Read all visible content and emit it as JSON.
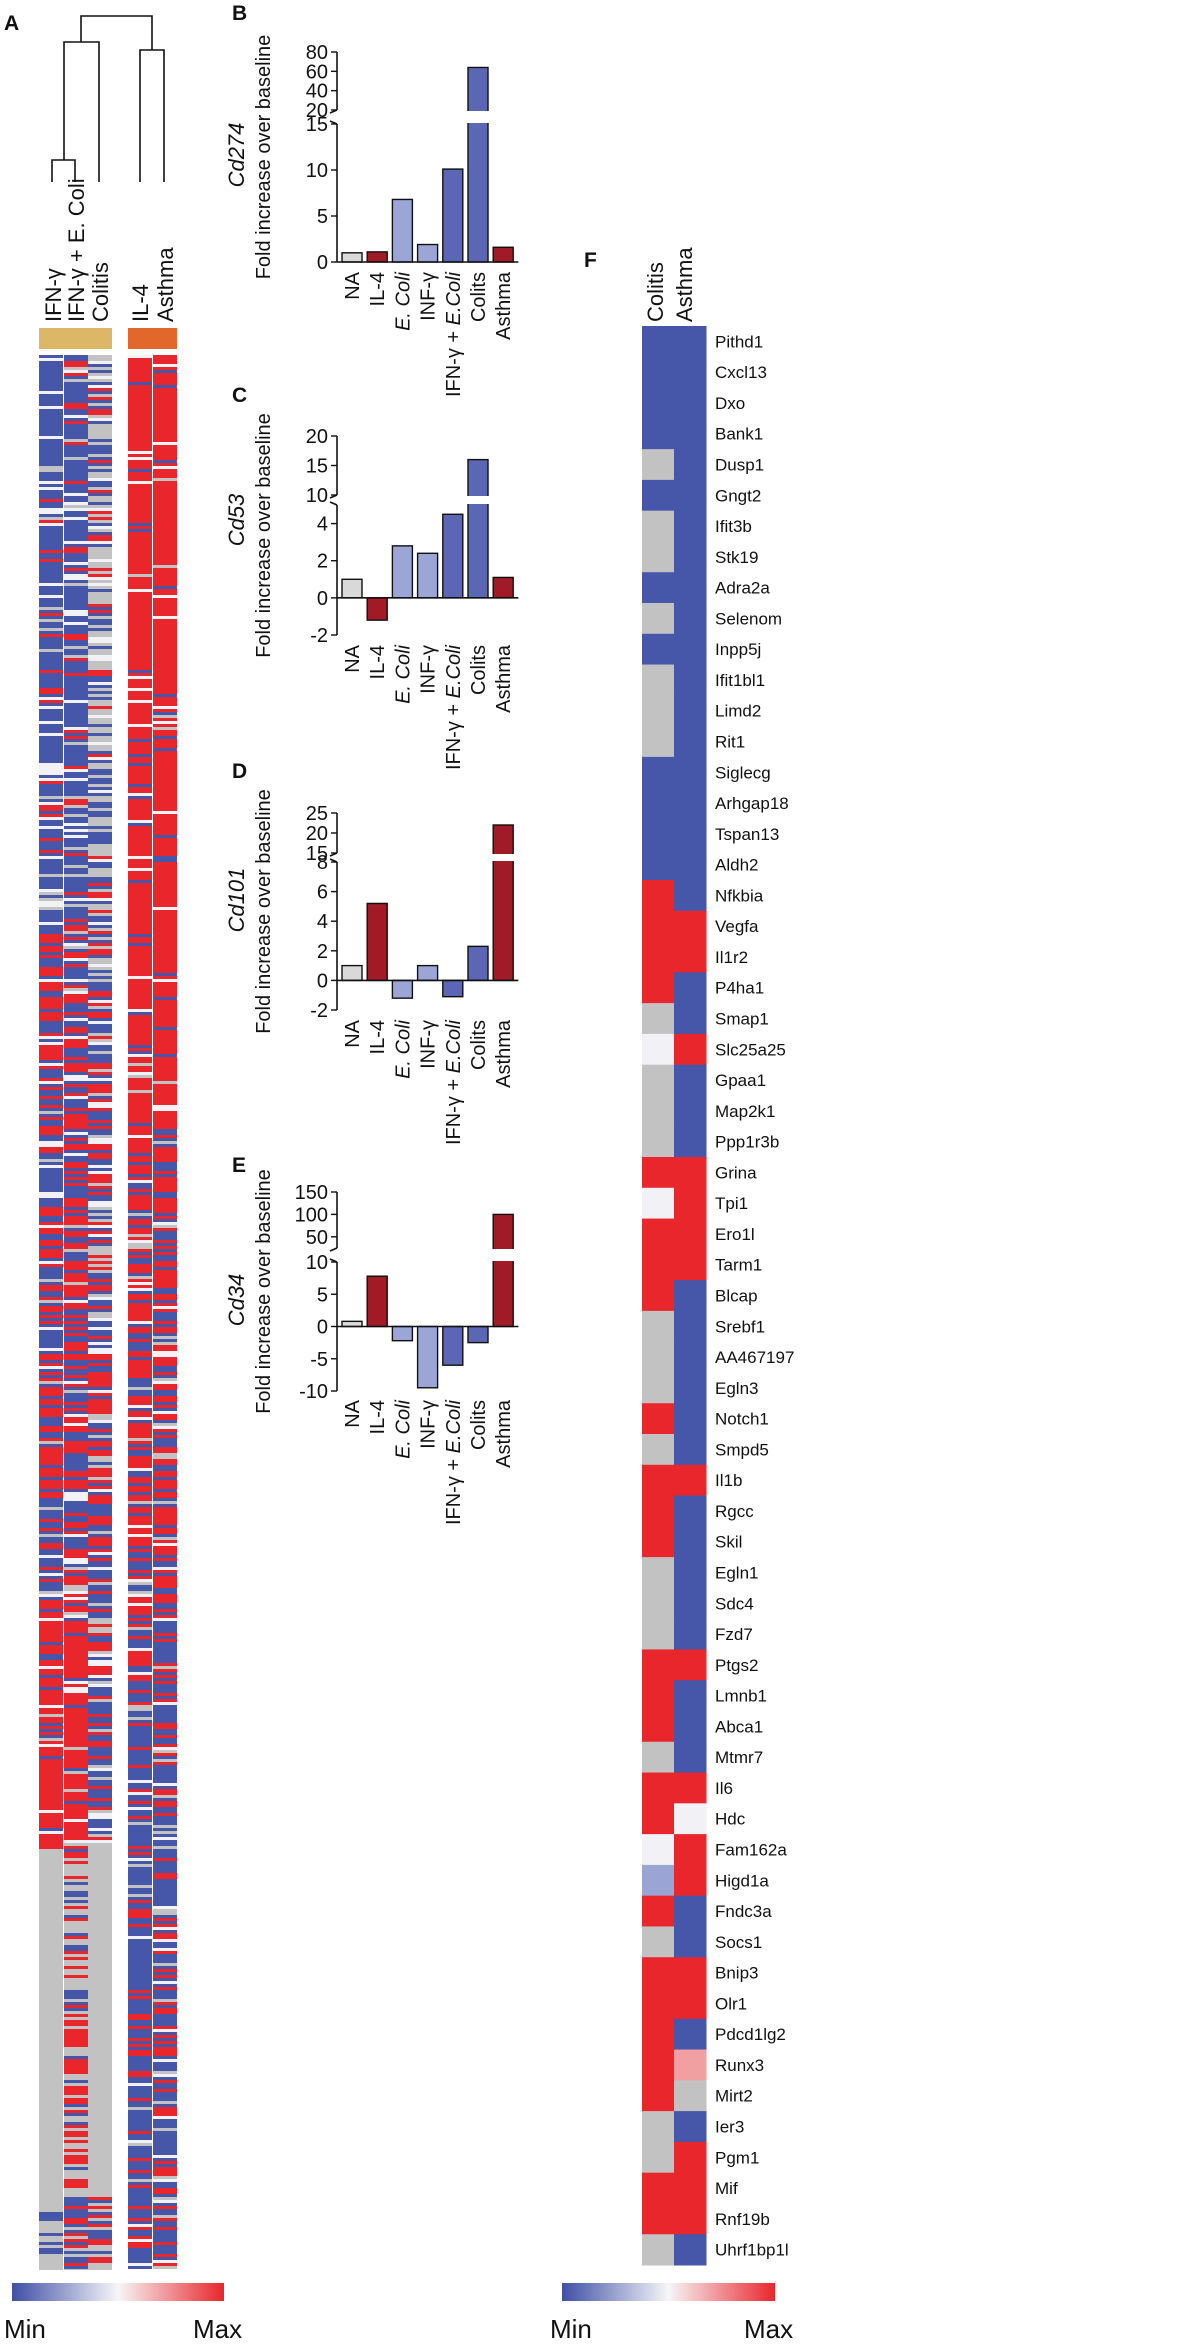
{
  "panels": {
    "a": "A",
    "b": "B",
    "c": "C",
    "d": "D",
    "e": "E",
    "f": "F"
  },
  "colors": {
    "blue": "#4656a8",
    "red": "#e8262c",
    "grey": "#c2c2c2",
    "white": "#f2f2f6",
    "light_blue": "#9ba5d3",
    "light_red": "#f0a0a0",
    "bar_na": "#d9d9d9",
    "bar_treg": "#9ba5d6",
    "bar_th1": "#5b66b4",
    "bar_th2": "#a01b25",
    "tan": "#dcb768",
    "orange": "#e2672a"
  },
  "heatmap_a": {
    "group1_labels": [
      "IFN-γ",
      "IFN-γ + E. Coli",
      "Colitis"
    ],
    "group2_labels": [
      "IL-4",
      "Asthma"
    ]
  },
  "colorbar": {
    "min": "Min",
    "max": "Max"
  },
  "chart_data": [
    {
      "panel": "B",
      "type": "bar",
      "gene": "Cd274",
      "ylabel": "Fold increase over baseline",
      "categories": [
        "NA",
        "IL-4",
        "E. Coli",
        "INF-γ",
        "IFN-γ + E.Coli",
        "Colits",
        "Asthma"
      ],
      "values": [
        1,
        1.1,
        6.8,
        1.9,
        10.1,
        64,
        1.6
      ],
      "lower_ticks": [
        "0",
        "5",
        "10",
        "15"
      ],
      "upper_ticks": [
        "20",
        "40",
        "60",
        "80"
      ],
      "lower_range": [
        0,
        15
      ],
      "upper_range": [
        20,
        80
      ]
    },
    {
      "panel": "C",
      "type": "bar",
      "gene": "Cd53",
      "ylabel": "Fold increase over baseline",
      "categories": [
        "NA",
        "IL-4",
        "E. Coli",
        "INF-γ",
        "IFN-γ + E.Coli",
        "Colits",
        "Asthma"
      ],
      "values": [
        1,
        -1.2,
        2.8,
        2.4,
        4.5,
        16,
        1.1
      ],
      "lower_ticks": [
        "-2",
        "0",
        "2",
        "4"
      ],
      "upper_ticks": [
        "10",
        "15",
        "20"
      ],
      "lower_range": [
        -2,
        5
      ],
      "upper_range": [
        10,
        20
      ]
    },
    {
      "panel": "D",
      "type": "bar",
      "gene": "Cd101",
      "ylabel": "Fold increase over baseline",
      "categories": [
        "NA",
        "IL-4",
        "E. Coli",
        "INF-γ",
        "IFN-γ + E.Coli",
        "Colits",
        "Asthma"
      ],
      "values": [
        1,
        5.2,
        -1.2,
        1,
        -1.1,
        2.3,
        22
      ],
      "lower_ticks": [
        "-2",
        "0",
        "2",
        "4",
        "6",
        "8"
      ],
      "upper_ticks": [
        "15",
        "20",
        "25"
      ],
      "lower_range": [
        -2,
        8
      ],
      "upper_range": [
        15,
        25
      ]
    },
    {
      "panel": "E",
      "type": "bar",
      "gene": "Cd34",
      "ylabel": "Fold increase over baseline",
      "categories": [
        "NA",
        "IL-4",
        "E. Coli",
        "INF-γ",
        "IFN-γ + E.Coli",
        "Colits",
        "Asthma"
      ],
      "values": [
        0.8,
        7.8,
        -2.2,
        -9.5,
        -6,
        -2.5,
        100
      ],
      "lower_ticks": [
        "-10",
        "-5",
        "0",
        "5",
        "10"
      ],
      "upper_ticks": [
        "50",
        "100",
        "150"
      ],
      "lower_range": [
        -10,
        10
      ],
      "upper_range": [
        25,
        150
      ]
    },
    {
      "panel": "F",
      "type": "heatmap",
      "columns": [
        "Colitis",
        "Asthma"
      ],
      "genes": [
        "Pithd1",
        "Cxcl13",
        "Dxo",
        "Bank1",
        "Dusp1",
        "Gngt2",
        "Ifit3b",
        "Stk19",
        "Adra2a",
        "Selenom",
        "Inpp5j",
        "Ifit1bl1",
        "Limd2",
        "Rit1",
        "Siglecg",
        "Arhgap18",
        "Tspan13",
        "Aldh2",
        "Nfkbia",
        "Vegfa",
        "Il1r2",
        "P4ha1",
        "Smap1",
        "Slc25a25",
        "Gpaa1",
        "Map2k1",
        "Ppp1r3b",
        "Grina",
        "Tpi1",
        "Ero1l",
        "Tarm1",
        "Blcap",
        "Srebf1",
        "AA467197",
        "Egln3",
        "Notch1",
        "Smpd5",
        "Il1b",
        "Rgcc",
        "Skil",
        "Egln1",
        "Sdc4",
        "Fzd7",
        "Ptgs2",
        "Lmnb1",
        "Abca1",
        "Mtmr7",
        "Il6",
        "Hdc",
        "Fam162a",
        "Higd1a",
        "Fndc3a",
        "Socs1",
        "Bnip3",
        "Olr1",
        "Pdcd1lg2",
        "Runx3",
        "Mirt2",
        "Ier3",
        "Pgm1",
        "Mif",
        "Rnf19b",
        "Uhrf1bp1l"
      ],
      "cells": [
        [
          "b",
          "b"
        ],
        [
          "b",
          "b"
        ],
        [
          "b",
          "b"
        ],
        [
          "b",
          "b"
        ],
        [
          "g",
          "b"
        ],
        [
          "b",
          "b"
        ],
        [
          "g",
          "b"
        ],
        [
          "g",
          "b"
        ],
        [
          "b",
          "b"
        ],
        [
          "g",
          "b"
        ],
        [
          "b",
          "b"
        ],
        [
          "g",
          "b"
        ],
        [
          "g",
          "b"
        ],
        [
          "g",
          "b"
        ],
        [
          "b",
          "b"
        ],
        [
          "b",
          "b"
        ],
        [
          "b",
          "b"
        ],
        [
          "b",
          "b"
        ],
        [
          "r",
          "b"
        ],
        [
          "r",
          "r"
        ],
        [
          "r",
          "r"
        ],
        [
          "r",
          "b"
        ],
        [
          "g",
          "b"
        ],
        [
          "w",
          "r"
        ],
        [
          "g",
          "b"
        ],
        [
          "g",
          "b"
        ],
        [
          "g",
          "b"
        ],
        [
          "r",
          "r"
        ],
        [
          "w",
          "r"
        ],
        [
          "r",
          "r"
        ],
        [
          "r",
          "r"
        ],
        [
          "r",
          "b"
        ],
        [
          "g",
          "b"
        ],
        [
          "g",
          "b"
        ],
        [
          "g",
          "b"
        ],
        [
          "r",
          "b"
        ],
        [
          "g",
          "b"
        ],
        [
          "r",
          "r"
        ],
        [
          "r",
          "b"
        ],
        [
          "r",
          "b"
        ],
        [
          "g",
          "b"
        ],
        [
          "g",
          "b"
        ],
        [
          "g",
          "b"
        ],
        [
          "r",
          "r"
        ],
        [
          "r",
          "b"
        ],
        [
          "r",
          "b"
        ],
        [
          "g",
          "b"
        ],
        [
          "r",
          "r"
        ],
        [
          "r",
          "w"
        ],
        [
          "w",
          "r"
        ],
        [
          "lb",
          "r"
        ],
        [
          "r",
          "b"
        ],
        [
          "g",
          "b"
        ],
        [
          "r",
          "r"
        ],
        [
          "r",
          "r"
        ],
        [
          "r",
          "b"
        ],
        [
          "r",
          "lr"
        ],
        [
          "r",
          "g"
        ],
        [
          "g",
          "b"
        ],
        [
          "g",
          "r"
        ],
        [
          "r",
          "r"
        ],
        [
          "r",
          "r"
        ],
        [
          "g",
          "b"
        ]
      ]
    }
  ]
}
